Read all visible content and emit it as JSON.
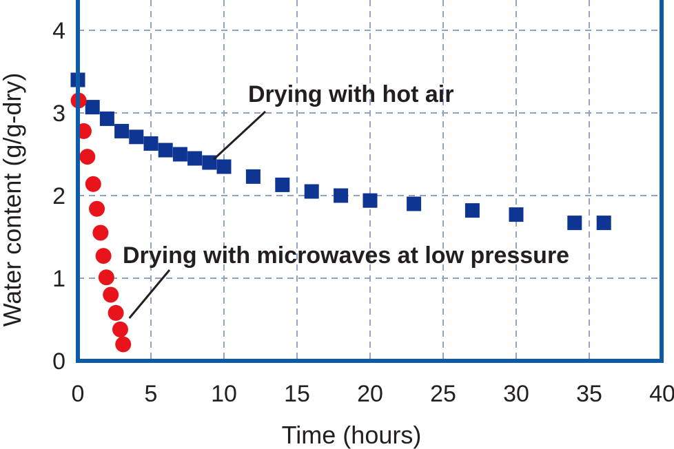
{
  "chart_data": {
    "type": "scatter",
    "xlabel": "Time (hours)",
    "ylabel": "Water content (g/g-dry)",
    "xlim": [
      0,
      40
    ],
    "ylim": [
      0,
      4.4
    ],
    "xticks": [
      0,
      5,
      10,
      15,
      20,
      25,
      30,
      35,
      40
    ],
    "yticks": [
      0,
      1,
      2,
      3,
      4
    ],
    "grid": true,
    "colors": {
      "frame": "#0e5aa7",
      "grid": "#8da3c7",
      "text": "#231f20"
    },
    "series": [
      {
        "marker": "square",
        "color": "#0d3591",
        "x": [
          0,
          1,
          2,
          3,
          4,
          5,
          6,
          7,
          8,
          9,
          10,
          12,
          14,
          16,
          18,
          20,
          23,
          27,
          30,
          34,
          36
        ],
        "y": [
          3.4,
          3.07,
          2.93,
          2.78,
          2.71,
          2.63,
          2.55,
          2.5,
          2.45,
          2.4,
          2.35,
          2.23,
          2.13,
          2.05,
          2.0,
          1.94,
          1.9,
          1.82,
          1.77,
          1.67,
          1.67
        ]
      },
      {
        "marker": "circle",
        "color": "#e8131b",
        "x": [
          0.05,
          0.4,
          0.65,
          1.05,
          1.3,
          1.55,
          1.75,
          1.95,
          2.25,
          2.6,
          2.9,
          3.1
        ],
        "y": [
          3.15,
          2.78,
          2.47,
          2.14,
          1.84,
          1.55,
          1.27,
          1.01,
          0.8,
          0.58,
          0.38,
          0.2
        ]
      }
    ],
    "annotations": [
      {
        "text": "Drying with hot air",
        "target": {
          "x": 9,
          "y": 2.42
        },
        "label_anchor": {
          "x": 12,
          "y": 3.15
        }
      },
      {
        "text": "Drying with microwaves at low pressure",
        "target": {
          "x": 3.05,
          "y": 0.4
        },
        "label_anchor": {
          "x": 6,
          "y": 1.15
        }
      }
    ]
  }
}
